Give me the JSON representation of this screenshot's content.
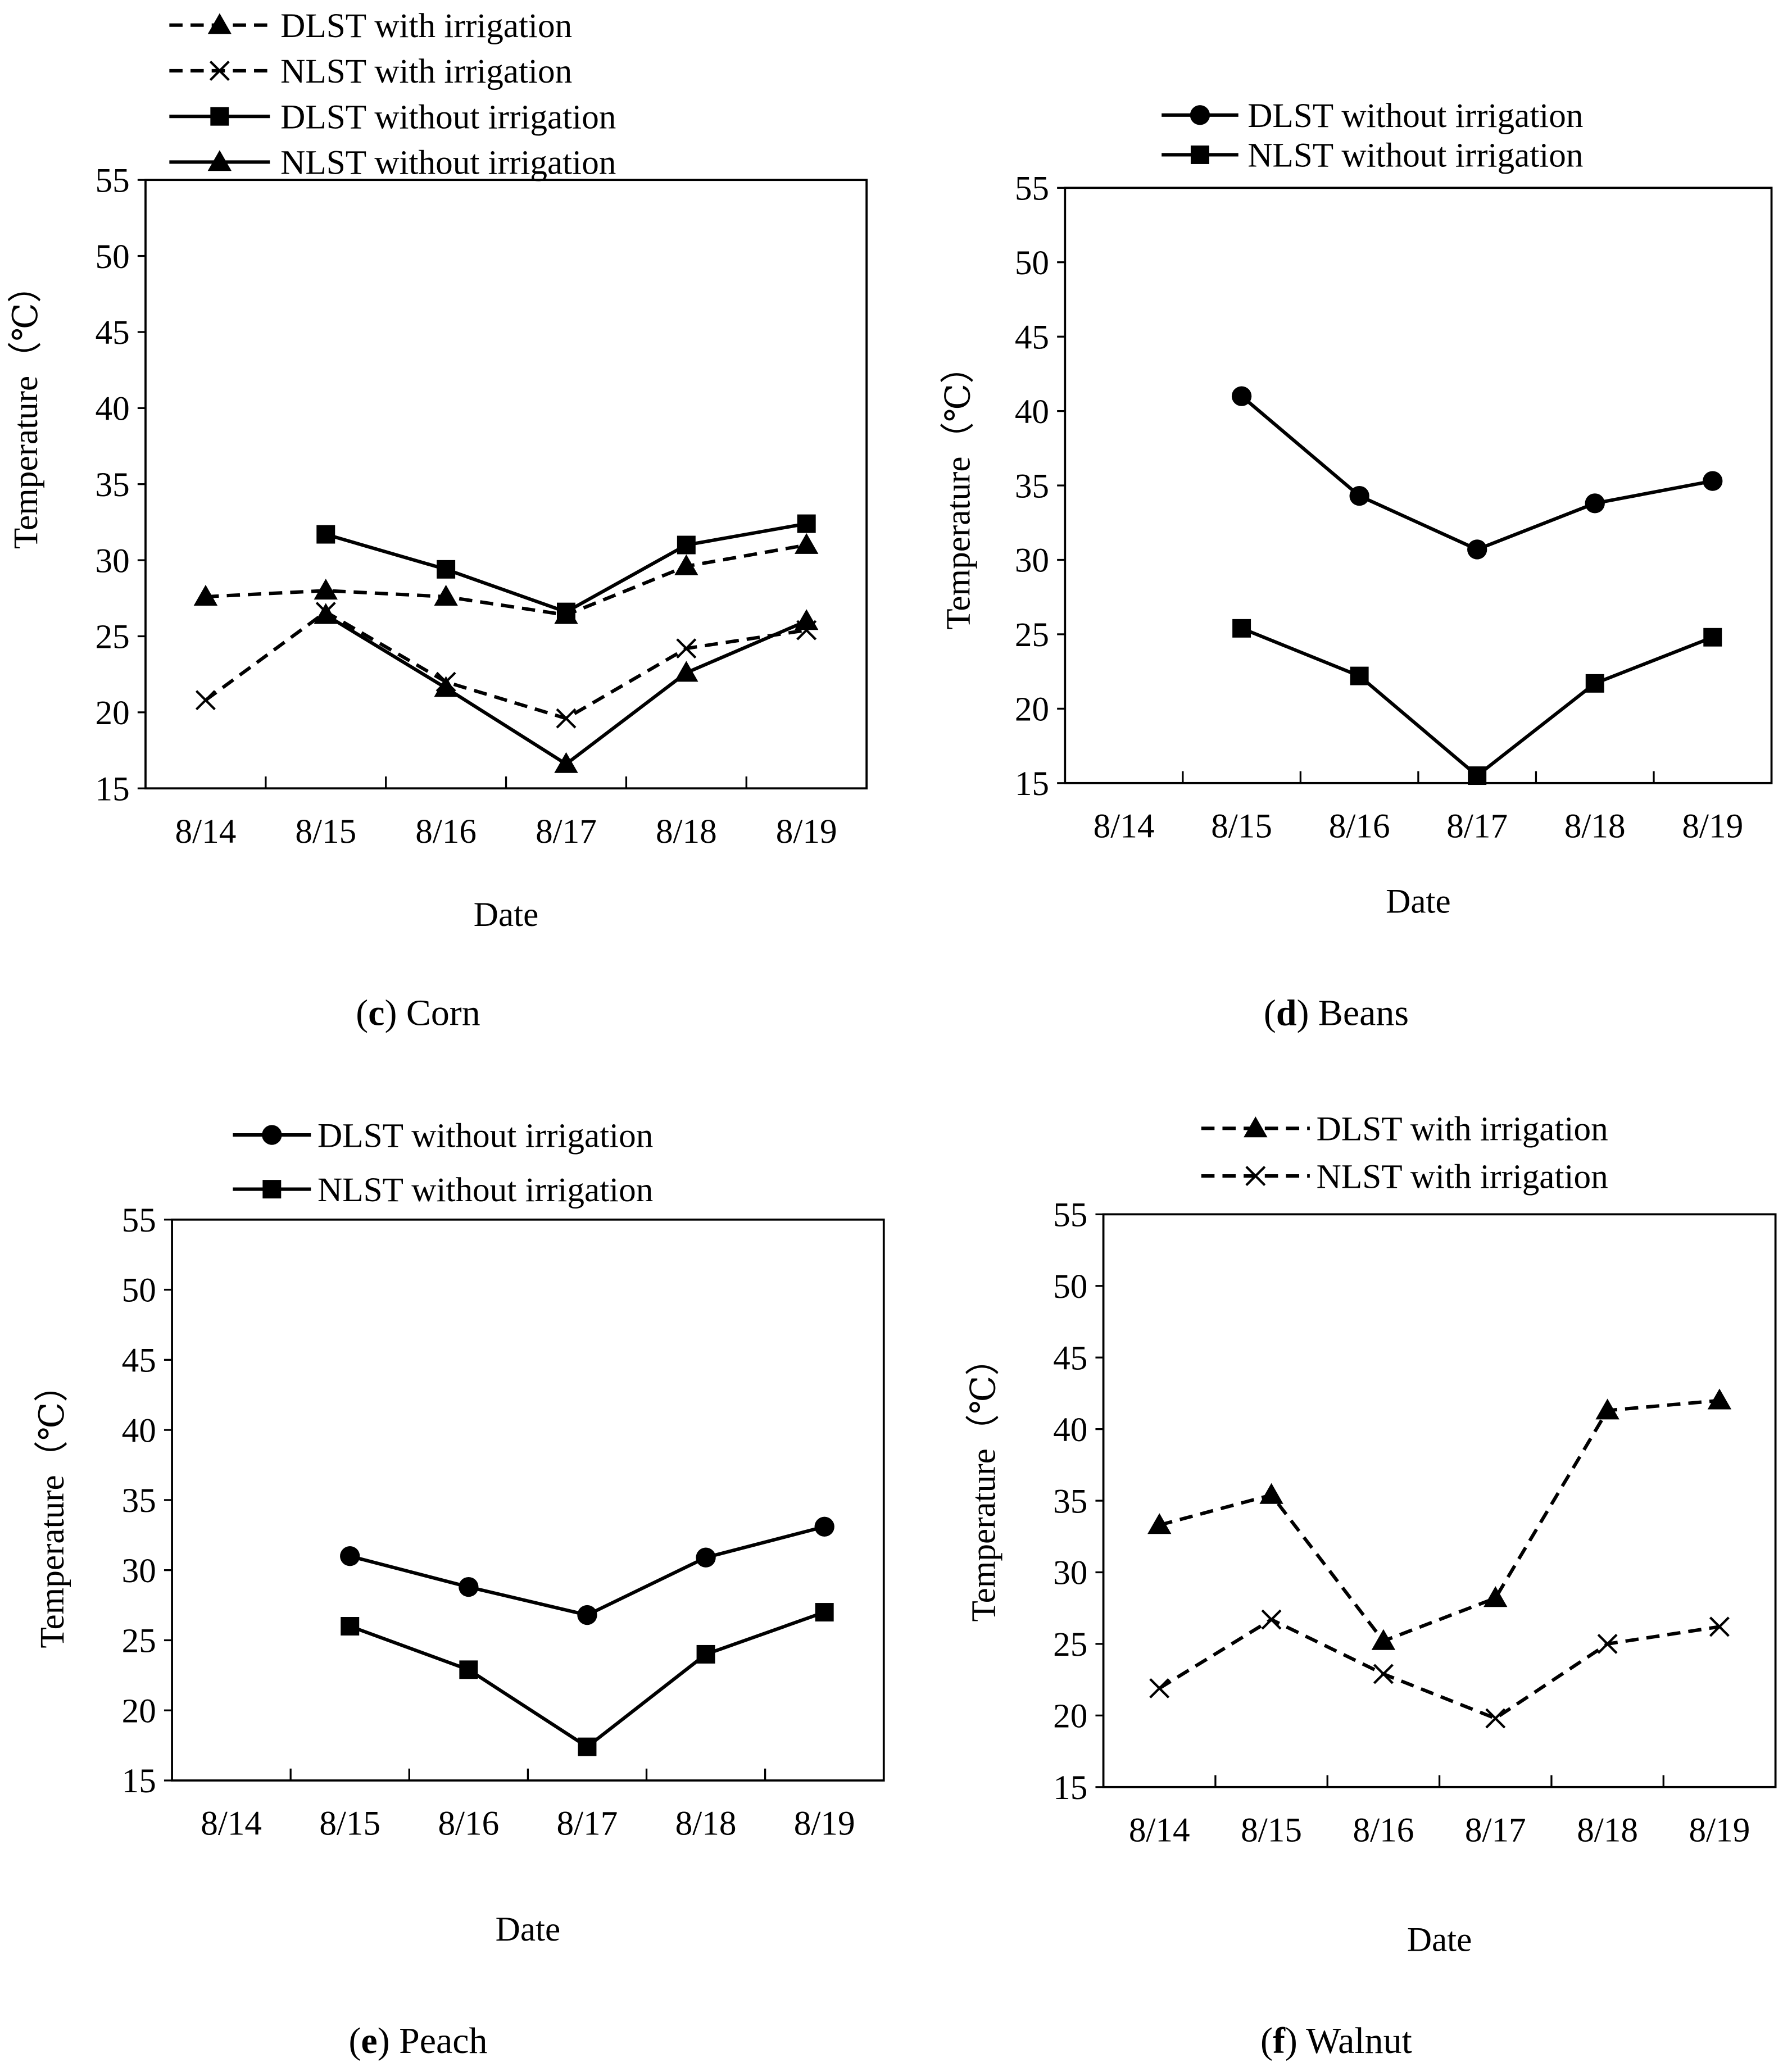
{
  "figure": {
    "panels": [
      "c",
      "d",
      "e",
      "f"
    ]
  },
  "chart_data": [
    {
      "panel_letter": "c",
      "panel_name": "Corn",
      "type": "line",
      "xlabel": "Date",
      "ylabel": "Temperature（℃）",
      "categories": [
        "8/14",
        "8/15",
        "8/16",
        "8/17",
        "8/18",
        "8/19"
      ],
      "ylim": [
        15,
        55
      ],
      "yticks": [
        15,
        20,
        25,
        30,
        35,
        40,
        45,
        50,
        55
      ],
      "grid": false,
      "legend_position": "top-left",
      "series": [
        {
          "name": "DLST with irrigation",
          "dashed": true,
          "marker": "triangle",
          "values": [
            27.6,
            28.0,
            27.6,
            26.4,
            29.6,
            31.0
          ]
        },
        {
          "name": "NLST with irrigation",
          "dashed": true,
          "marker": "x",
          "values": [
            20.8,
            26.6,
            22.0,
            19.6,
            24.2,
            25.4
          ]
        },
        {
          "name": "DLST without irrigation",
          "dashed": false,
          "marker": "square",
          "values": [
            null,
            31.7,
            29.4,
            26.6,
            31.0,
            32.4
          ]
        },
        {
          "name": "NLST without irrigation",
          "dashed": false,
          "marker": "triangle",
          "values": [
            null,
            26.4,
            21.6,
            16.6,
            22.6,
            26.0
          ]
        }
      ]
    },
    {
      "panel_letter": "d",
      "panel_name": "Beans",
      "type": "line",
      "xlabel": "Date",
      "ylabel": "Temperature（℃）",
      "categories": [
        "8/14",
        "8/15",
        "8/16",
        "8/17",
        "8/18",
        "8/19"
      ],
      "ylim": [
        15,
        55
      ],
      "yticks": [
        15,
        20,
        25,
        30,
        35,
        40,
        45,
        50,
        55
      ],
      "grid": false,
      "legend_position": "top-center",
      "series": [
        {
          "name": "DLST without irrigation",
          "dashed": false,
          "marker": "circle",
          "values": [
            null,
            41.0,
            34.3,
            30.7,
            33.8,
            35.3
          ]
        },
        {
          "name": "NLST without irrigation",
          "dashed": false,
          "marker": "square",
          "values": [
            null,
            25.4,
            22.2,
            15.5,
            21.7,
            24.8
          ]
        }
      ]
    },
    {
      "panel_letter": "e",
      "panel_name": "Peach",
      "type": "line",
      "xlabel": "Date",
      "ylabel": "Temperature（℃）",
      "categories": [
        "8/14",
        "8/15",
        "8/16",
        "8/17",
        "8/18",
        "8/19"
      ],
      "ylim": [
        15,
        55
      ],
      "yticks": [
        15,
        20,
        25,
        30,
        35,
        40,
        45,
        50,
        55
      ],
      "grid": false,
      "legend_position": "top-center",
      "series": [
        {
          "name": "DLST without irrigation",
          "dashed": false,
          "marker": "circle",
          "values": [
            null,
            31.0,
            28.8,
            26.8,
            30.9,
            33.1
          ]
        },
        {
          "name": "NLST without irrigation",
          "dashed": false,
          "marker": "square",
          "values": [
            null,
            26.0,
            22.9,
            17.4,
            24.0,
            27.0
          ]
        }
      ]
    },
    {
      "panel_letter": "f",
      "panel_name": "Walnut",
      "type": "line",
      "xlabel": "Date",
      "ylabel": "Temperature（℃）",
      "categories": [
        "8/14",
        "8/15",
        "8/16",
        "8/17",
        "8/18",
        "8/19"
      ],
      "ylim": [
        15,
        55
      ],
      "yticks": [
        15,
        20,
        25,
        30,
        35,
        40,
        45,
        50,
        55
      ],
      "grid": false,
      "legend_position": "top-center",
      "series": [
        {
          "name": "DLST with irrigation",
          "dashed": true,
          "marker": "triangle",
          "values": [
            33.3,
            35.4,
            25.2,
            28.2,
            41.3,
            42.0
          ]
        },
        {
          "name": "NLST with irrigation",
          "dashed": true,
          "marker": "x",
          "values": [
            21.9,
            26.7,
            22.9,
            19.8,
            25.0,
            26.2
          ]
        }
      ]
    }
  ]
}
